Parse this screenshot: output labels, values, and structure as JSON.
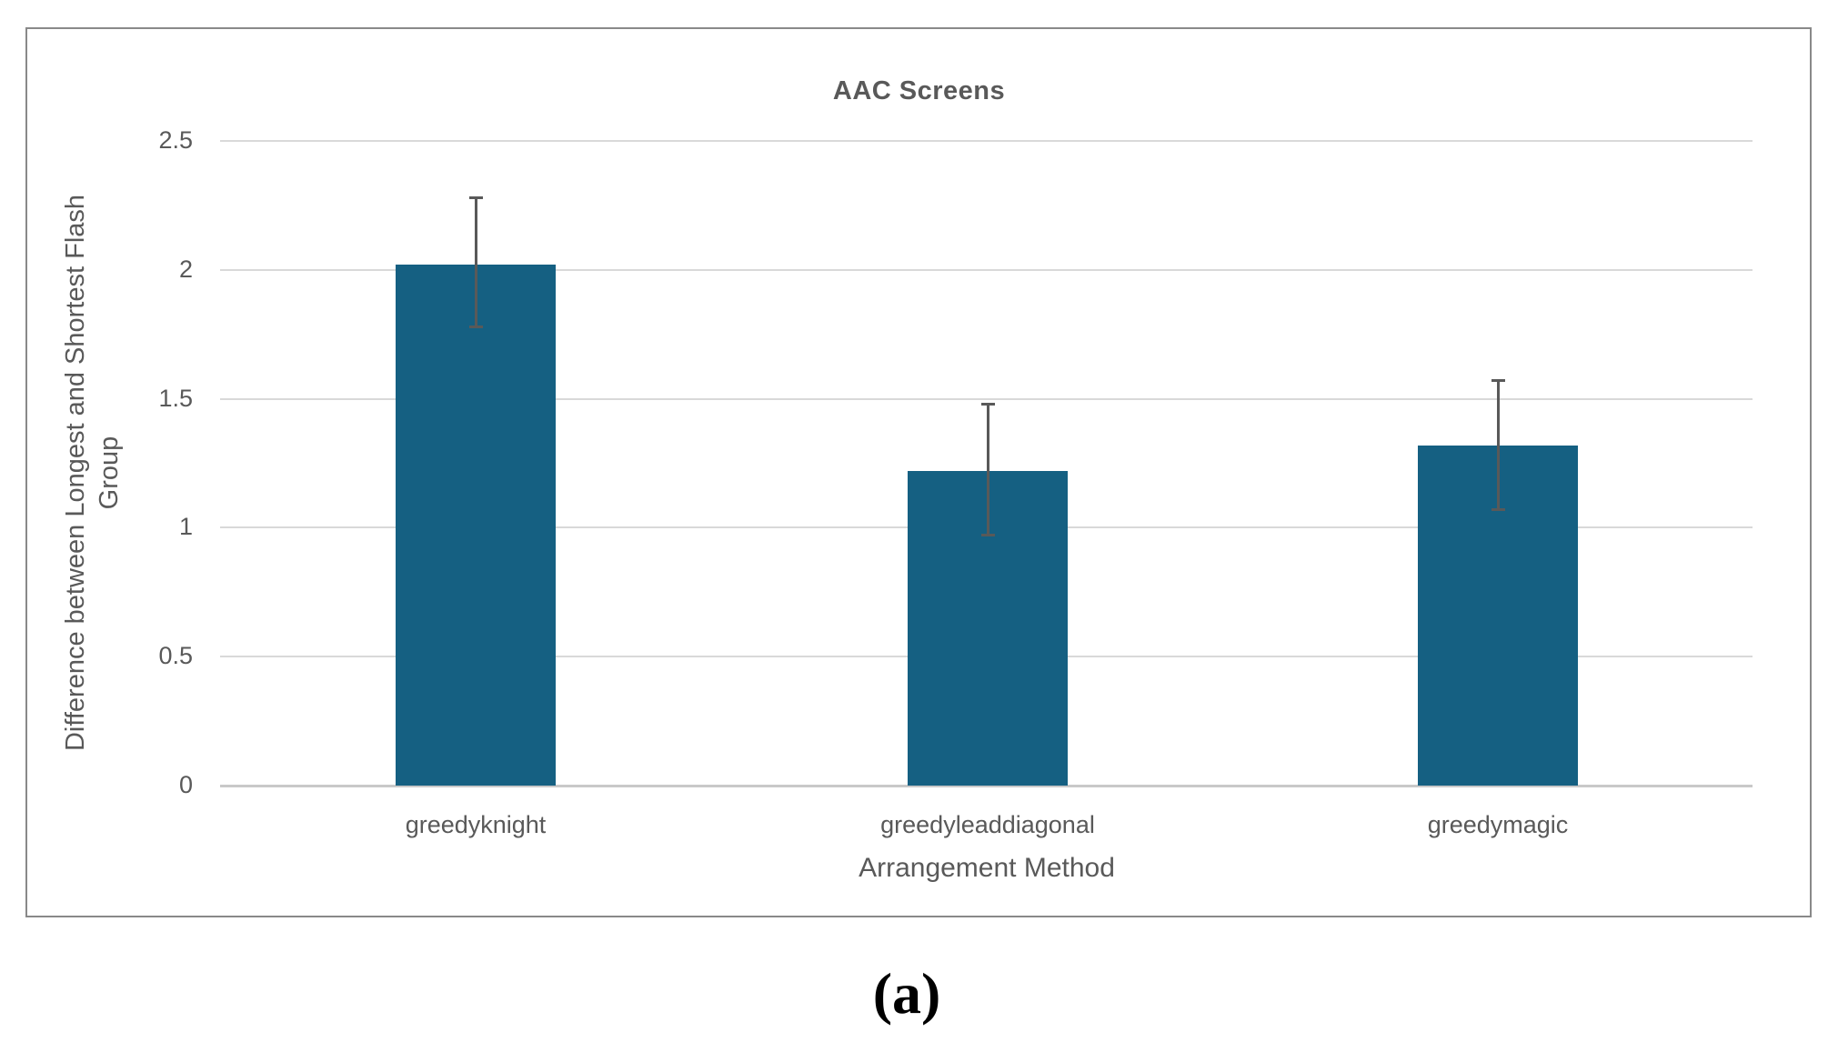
{
  "chart": {
    "title": "AAC Screens",
    "xlabel": "Arrangement Method",
    "caption": "(a)"
  },
  "chart_data": {
    "type": "bar",
    "title": "AAC Screens",
    "categories": [
      "greedyknight",
      "greedyleaddiagonal",
      "greedymagic"
    ],
    "values": [
      2.02,
      1.22,
      1.32
    ],
    "error_high": [
      2.28,
      1.48,
      1.57
    ],
    "error_low": [
      1.78,
      0.97,
      1.07
    ],
    "xlabel": "Arrangement Method",
    "ylabel": "Difference between Longest and Shortest Flash Group",
    "ylabel_lines": [
      "Difference between Longest and Shortest Flash",
      "Group"
    ],
    "ylim": [
      0,
      2.5
    ],
    "yticks": [
      0,
      0.5,
      1,
      1.5,
      2,
      2.5
    ],
    "bar_color": "#156082",
    "gridline_color": "#d9d9d9",
    "error_bar_color": "#595959",
    "text_color": "#595959",
    "grid": true,
    "legend": false
  }
}
